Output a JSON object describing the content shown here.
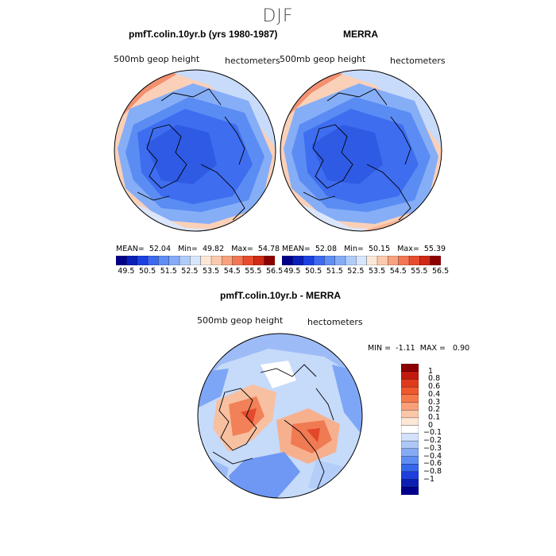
{
  "title": "DJF",
  "panels": {
    "left": {
      "title": "pmfT.colin.10yr.b (yrs 1980-1987)",
      "variable": "500mb geop height",
      "units": "hectometers",
      "stats": {
        "mean_label": "MEAN=",
        "mean": "52.04",
        "min_label": "Min=",
        "min": "49.82",
        "max_label": "Max=",
        "max": "54.78"
      }
    },
    "right": {
      "title": "MERRA",
      "variable": "500mb geop height",
      "units": "hectometers",
      "stats": {
        "mean_label": "MEAN=",
        "mean": "52.08",
        "min_label": "Min=",
        "min": "50.15",
        "max_label": "Max=",
        "max": "55.39"
      }
    },
    "diff": {
      "title": "pmfT.colin.10yr.b - MERRA",
      "variable": "500mb geop height",
      "units": "hectometers",
      "stats": {
        "min_label": "MIN =",
        "min": "-1.11",
        "max_label": "MAX =",
        "max": "0.90"
      }
    }
  },
  "colorbars": {
    "absolute": {
      "tick_labels": [
        "49.5",
        "50.5",
        "51.5",
        "52.5",
        "53.5",
        "54.5",
        "55.5",
        "56.5"
      ],
      "colors": [
        "#00008b",
        "#0a1fb8",
        "#1c3fe0",
        "#3d68f0",
        "#5f8ef5",
        "#86acf7",
        "#b0ccf9",
        "#d8e6fb",
        "#fde8d8",
        "#fbc9ae",
        "#f8a27f",
        "#f37554",
        "#e84c2e",
        "#cf2a17",
        "#8b0000"
      ]
    },
    "difference": {
      "tick_labels": [
        "1",
        "0.8",
        "0.6",
        "0.4",
        "0.3",
        "0.2",
        "0.1",
        "0",
        "−0.1",
        "−0.2",
        "−0.3",
        "−0.4",
        "−0.6",
        "−0.8",
        "−1"
      ],
      "colors": [
        "#8b0000",
        "#c21a0e",
        "#e03a1d",
        "#f0582e",
        "#f6794c",
        "#f9a07a",
        "#fcc6a8",
        "#fde7d6",
        "#ffffff",
        "#d4e3fb",
        "#adc8f8",
        "#86abf5",
        "#5e8ef2",
        "#3567ec",
        "#1d3fdc",
        "#0d1fb0",
        "#00008b"
      ]
    }
  },
  "map_colors": {
    "low": "#3f6ff0",
    "mid_low": "#7ea6f6",
    "mid": "#c6dafa",
    "neutral": "#fbe5d6",
    "high": "#f59a74",
    "very_high": "#e0482a",
    "coast": "#000000"
  }
}
